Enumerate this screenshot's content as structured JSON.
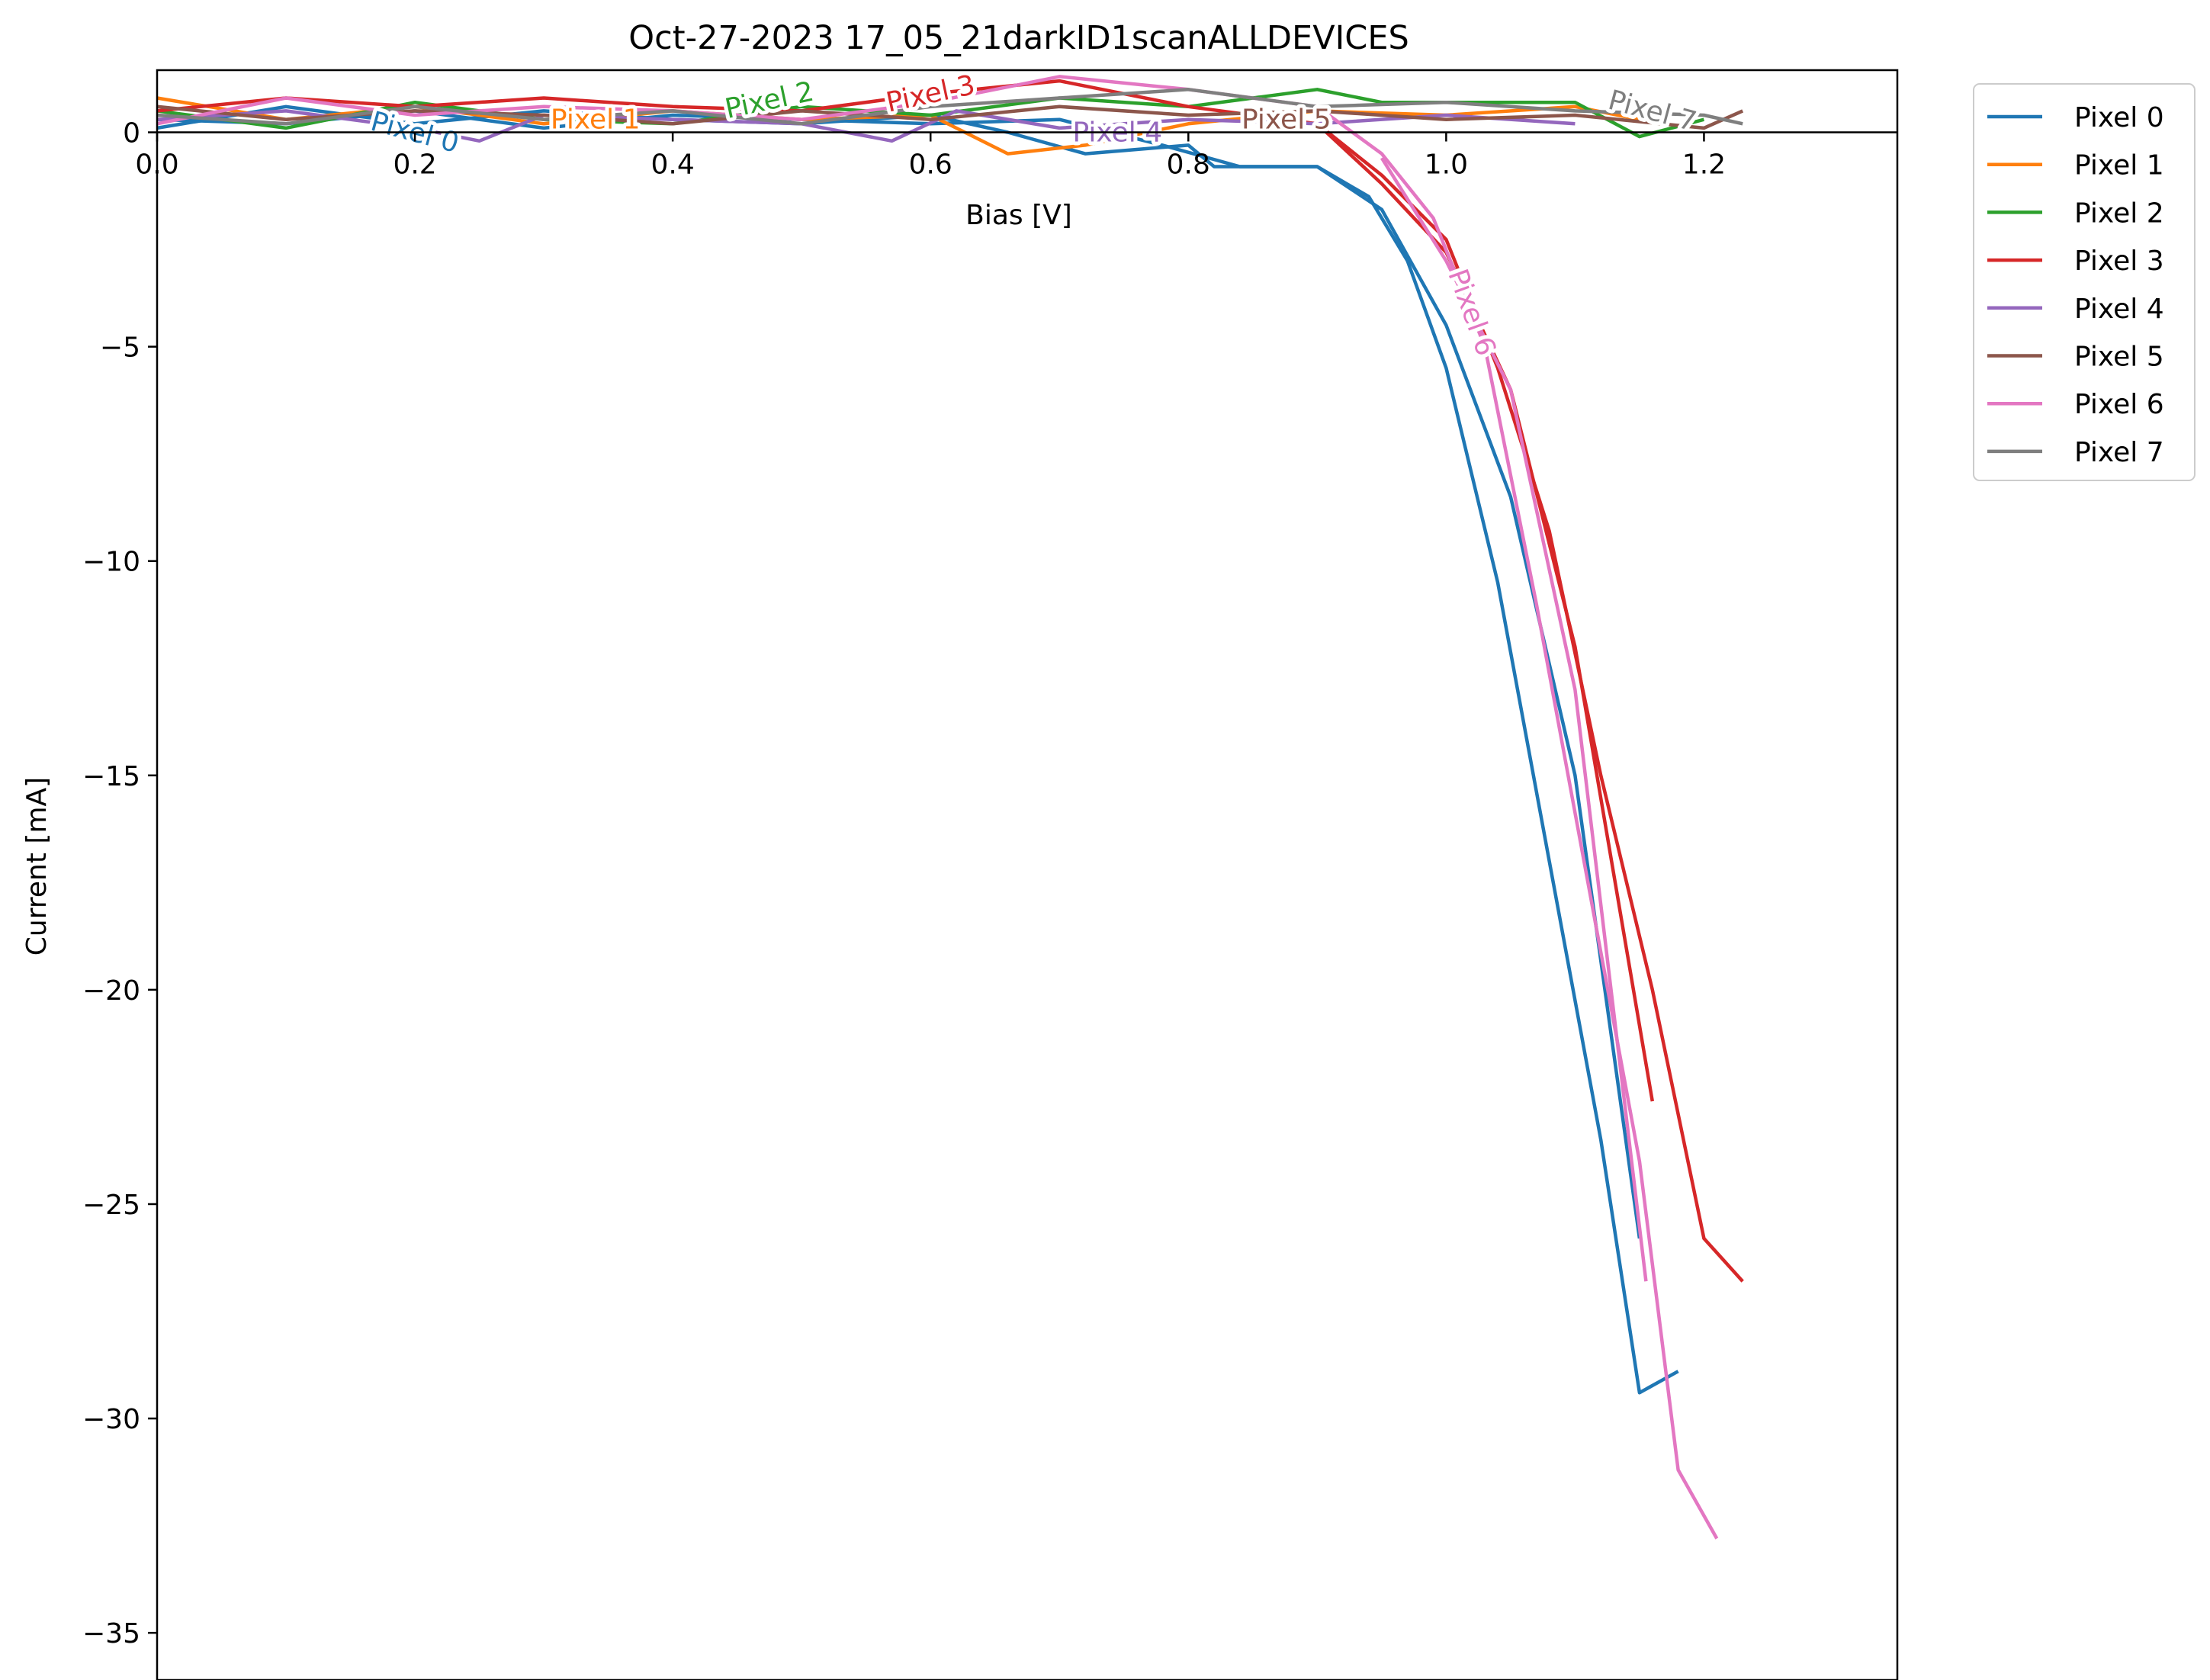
{
  "chart_data": {
    "type": "line",
    "title": "Oct-27-2023 17_05_21darkID1scanALLDEVICES",
    "xlabel": "Bias [V]",
    "ylabel": "Current [mA]",
    "xlim": [
      0.0,
      1.35
    ],
    "ylim": [
      -36.1,
      1.45
    ],
    "xticks": [
      0.0,
      0.2,
      0.4,
      0.6,
      0.8,
      1.0,
      1.2
    ],
    "xtick_labels": [
      "0.0",
      "0.2",
      "0.4",
      "0.6",
      "0.8",
      "1.0",
      "1.2"
    ],
    "yticks": [
      0,
      -5,
      -10,
      -15,
      -20,
      -25,
      -30,
      -35
    ],
    "ytick_labels": [
      "0",
      "−5",
      "−10",
      "−15",
      "−20",
      "−25",
      "−30",
      "−35"
    ],
    "grid": false,
    "legend_position": "outside-top-right",
    "colors": {
      "Pixel 0": "#1f77b4",
      "Pixel 1": "#ff7f0e",
      "Pixel 2": "#2ca02c",
      "Pixel 3": "#d62728",
      "Pixel 4": "#9467bd",
      "Pixel 5": "#8c564b",
      "Pixel 6": "#e377c2",
      "Pixel 7": "#7f7f7f"
    },
    "series": [
      {
        "name": "Pixel 0",
        "x": [
          0.0,
          0.1,
          0.2,
          0.3,
          0.4,
          0.5,
          0.6,
          0.66,
          0.72,
          0.8,
          0.82,
          0.86,
          0.9,
          0.94,
          0.97,
          1.0,
          1.04,
          1.08,
          1.12,
          1.15,
          1.18
        ],
        "y": [
          0.1,
          0.6,
          0.2,
          0.5,
          0.3,
          0.2,
          0.4,
          0.0,
          -0.5,
          -0.3,
          -0.8,
          -0.8,
          -0.8,
          -1.5,
          -3.0,
          -5.5,
          -10.5,
          -17.0,
          -23.5,
          -29.4,
          -28.9
        ],
        "x2": [
          0.0,
          0.1,
          0.2,
          0.3,
          0.4,
          0.5,
          0.6,
          0.7,
          0.78,
          0.84,
          0.9,
          0.95,
          1.0,
          1.05,
          1.1,
          1.15
        ],
        "y2": [
          0.3,
          0.2,
          0.5,
          0.1,
          0.4,
          0.3,
          0.2,
          0.3,
          -0.3,
          -0.8,
          -0.8,
          -1.8,
          -4.5,
          -8.5,
          -15.0,
          -25.8
        ]
      },
      {
        "name": "Pixel 1",
        "x": [
          0.0,
          0.1,
          0.2,
          0.3,
          0.4,
          0.5,
          0.6,
          0.66,
          0.72,
          0.8,
          0.9,
          1.0,
          1.1,
          1.15
        ],
        "y": [
          0.8,
          0.3,
          0.6,
          0.2,
          0.5,
          0.3,
          0.4,
          -0.5,
          -0.3,
          0.2,
          0.5,
          0.4,
          0.6,
          0.3
        ]
      },
      {
        "name": "Pixel 2",
        "x": [
          0.0,
          0.1,
          0.2,
          0.3,
          0.4,
          0.5,
          0.6,
          0.7,
          0.8,
          0.9,
          0.95,
          1.0,
          1.1,
          1.15,
          1.2
        ],
        "y": [
          0.5,
          0.1,
          0.7,
          0.3,
          0.2,
          0.6,
          0.4,
          0.8,
          0.6,
          1.0,
          0.7,
          0.7,
          0.7,
          -0.1,
          0.3
        ]
      },
      {
        "name": "Pixel 3",
        "x": [
          0.0,
          0.1,
          0.2,
          0.3,
          0.4,
          0.5,
          0.6,
          0.7,
          0.8,
          0.9,
          0.95,
          1.0,
          1.04,
          1.08,
          1.12,
          1.16,
          1.2,
          1.23
        ],
        "y": [
          0.5,
          0.8,
          0.6,
          0.8,
          0.6,
          0.5,
          0.9,
          1.2,
          0.6,
          0.2,
          -1.0,
          -2.5,
          -5.5,
          -9.3,
          -15.0,
          -20.0,
          -25.8,
          -26.8
        ],
        "x2": [
          0.9,
          0.95,
          1.0,
          1.05,
          1.1,
          1.16
        ],
        "y2": [
          0.2,
          -1.2,
          -2.8,
          -6.0,
          -12.0,
          -22.6
        ]
      },
      {
        "name": "Pixel 4",
        "x": [
          0.0,
          0.1,
          0.2,
          0.25,
          0.3,
          0.4,
          0.5,
          0.57,
          0.62,
          0.7,
          0.8,
          0.9,
          1.0,
          1.1
        ],
        "y": [
          0.3,
          0.5,
          0.1,
          -0.2,
          0.4,
          0.3,
          0.2,
          -0.2,
          0.5,
          0.1,
          0.3,
          0.2,
          0.4,
          0.2
        ]
      },
      {
        "name": "Pixel 5",
        "x": [
          0.0,
          0.1,
          0.2,
          0.3,
          0.4,
          0.5,
          0.6,
          0.7,
          0.8,
          0.9,
          1.0,
          1.1,
          1.2,
          1.23
        ],
        "y": [
          0.6,
          0.3,
          0.5,
          0.4,
          0.2,
          0.5,
          0.3,
          0.6,
          0.4,
          0.5,
          0.3,
          0.4,
          0.1,
          0.5
        ]
      },
      {
        "name": "Pixel 6",
        "x": [
          0.0,
          0.1,
          0.2,
          0.3,
          0.4,
          0.5,
          0.6,
          0.7,
          0.8,
          0.9,
          0.95,
          0.99,
          1.03,
          1.07,
          1.11,
          1.15,
          1.18,
          1.21
        ],
        "y": [
          0.2,
          0.8,
          0.4,
          0.6,
          0.5,
          0.3,
          0.7,
          1.3,
          1.0,
          0.6,
          -0.5,
          -2.0,
          -5.0,
          -11.0,
          -17.5,
          -24.0,
          -31.2,
          -32.8
        ],
        "x2": [
          0.95,
          1.0,
          1.05,
          1.1,
          1.155
        ],
        "y2": [
          -0.6,
          -3.0,
          -6.0,
          -13.0,
          -26.8
        ]
      },
      {
        "name": "Pixel 7",
        "x": [
          0.0,
          0.1,
          0.2,
          0.3,
          0.4,
          0.5,
          0.6,
          0.7,
          0.8,
          0.9,
          1.0,
          1.1,
          1.2,
          1.23
        ],
        "y": [
          0.4,
          0.2,
          0.6,
          0.3,
          0.5,
          0.2,
          0.6,
          0.8,
          1.0,
          0.6,
          0.7,
          0.5,
          0.4,
          0.2
        ]
      }
    ],
    "inline_labels": [
      {
        "text": "Pixel 0",
        "series": "Pixel 0",
        "x": 0.2,
        "y": 0.0,
        "angle": 15
      },
      {
        "text": "Pixel 1",
        "series": "Pixel 1",
        "x": 0.34,
        "y": 0.3,
        "angle": 0
      },
      {
        "text": "Pixel 2",
        "series": "Pixel 2",
        "x": 0.475,
        "y": 0.75,
        "angle": -12
      },
      {
        "text": "Pixel 3",
        "series": "Pixel 3",
        "x": 0.6,
        "y": 0.9,
        "angle": -12
      },
      {
        "text": "Pixel 4",
        "series": "Pixel 4",
        "x": 0.745,
        "y": 0.0,
        "angle": 0
      },
      {
        "text": "Pixel 5",
        "series": "Pixel 5",
        "x": 0.876,
        "y": 0.3,
        "angle": 0
      },
      {
        "text": "Pixel 6",
        "series": "Pixel 6",
        "x": 1.02,
        "y": -4.2,
        "angle": 70
      },
      {
        "text": "Pixel 7",
        "series": "Pixel 7",
        "x": 1.16,
        "y": 0.5,
        "angle": 15
      }
    ]
  }
}
